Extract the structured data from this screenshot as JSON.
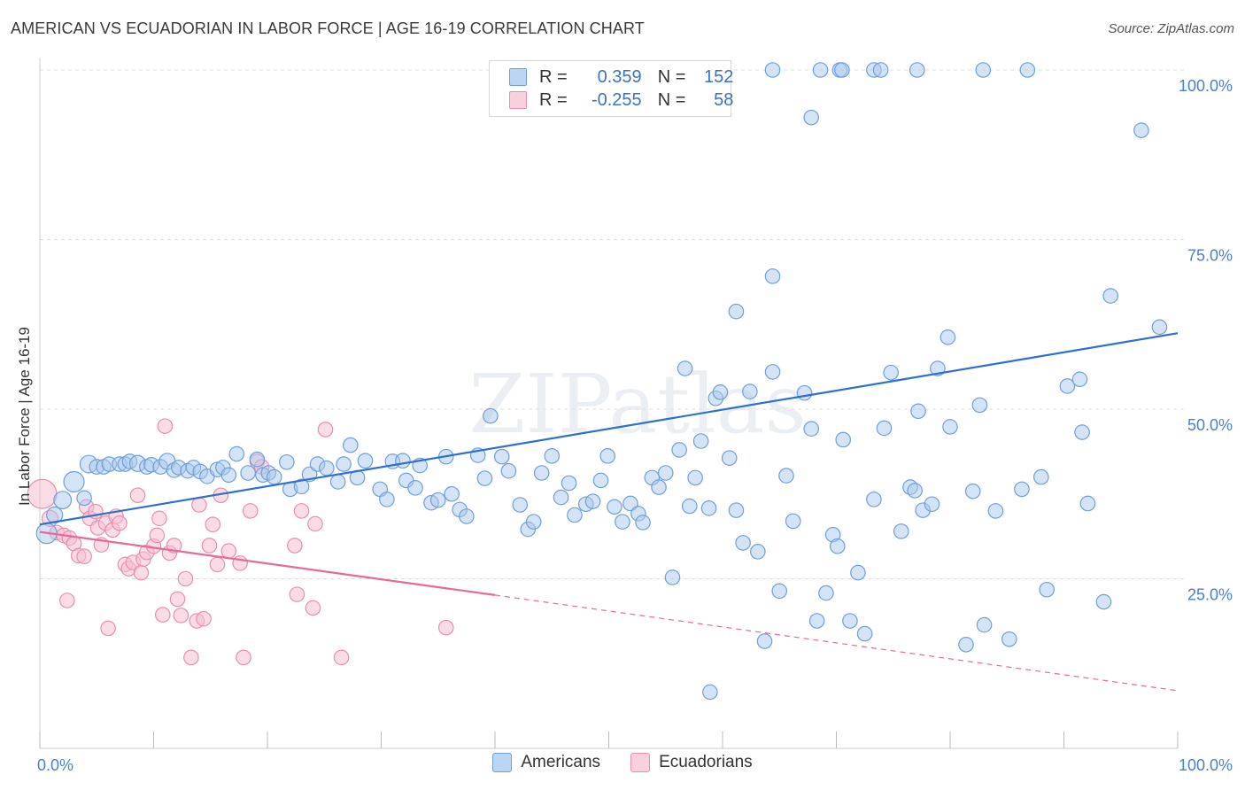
{
  "title": "AMERICAN VS ECUADORIAN IN LABOR FORCE | AGE 16-19 CORRELATION CHART",
  "source": "Source: ZipAtlas.com",
  "watermark": "ZIPatlas",
  "colors": {
    "blue_fill": "#a9c8ee",
    "blue_stroke": "#6f9fdb",
    "blue_line": "#2f6fcf",
    "pink_fill": "#f6c0d2",
    "pink_stroke": "#ea8eae",
    "pink_line": "#e8689a",
    "tick_label": "#4a7fcf",
    "grid": "#dddddd"
  },
  "legend": {
    "rows": [
      {
        "r_label": "R =",
        "r_value": "0.359",
        "n_label": "N =",
        "n_value": "152"
      },
      {
        "r_label": "R =",
        "r_value": "-0.255",
        "n_label": "N =",
        "n_value": "58"
      }
    ]
  },
  "bottom_legend": [
    "Americans",
    "Ecuadorians"
  ],
  "chart_data": {
    "type": "scatter",
    "title": "AMERICAN VS ECUADORIAN IN LABOR FORCE | AGE 16-19 CORRELATION CHART",
    "xlabel": "",
    "ylabel": "In Labor Force | Age 16-19",
    "xlim": [
      0,
      100
    ],
    "ylim": [
      0,
      100
    ],
    "x_tick_labels": [
      "0.0%",
      "100.0%"
    ],
    "y_ticks": [
      25,
      50,
      75,
      100
    ],
    "y_tick_labels": [
      "25.0%",
      "50.0%",
      "75.0%",
      "100.0%"
    ],
    "grid": true,
    "legend_position": "top-center",
    "series": [
      {
        "name": "Americans",
        "r": 0.359,
        "n": 152,
        "trend": {
          "x": [
            0,
            100
          ],
          "y": [
            33.0,
            61.2
          ],
          "style": "solid"
        },
        "points": [
          [
            0.6,
            31.7,
            14
          ],
          [
            1.3,
            34.4,
            11
          ],
          [
            2.0,
            36.6,
            12
          ],
          [
            3.0,
            39.3,
            14
          ],
          [
            3.9,
            36.9,
            10
          ],
          [
            4.3,
            41.9,
            12
          ],
          [
            5.0,
            41.5,
            10
          ],
          [
            5.6,
            41.5,
            10
          ],
          [
            6.1,
            41.9,
            10
          ],
          [
            7.0,
            41.9,
            10
          ],
          [
            7.5,
            41.9,
            10
          ],
          [
            7.9,
            42.3,
            10
          ],
          [
            8.6,
            42.0,
            11
          ],
          [
            9.4,
            41.5,
            10
          ],
          [
            9.8,
            41.8,
            10
          ],
          [
            10.6,
            41.5,
            10
          ],
          [
            11.2,
            42.3,
            11
          ],
          [
            11.8,
            41.0,
            10
          ],
          [
            12.2,
            41.4,
            10
          ],
          [
            13.0,
            40.9,
            10
          ],
          [
            13.5,
            41.4,
            10
          ],
          [
            14.1,
            40.8,
            10
          ],
          [
            14.7,
            40.1,
            10
          ],
          [
            15.6,
            41.1,
            10
          ],
          [
            16.1,
            41.4,
            10
          ],
          [
            16.6,
            40.3,
            10
          ],
          [
            17.3,
            43.4,
            10
          ],
          [
            18.3,
            40.6,
            10
          ],
          [
            19.1,
            42.6,
            10
          ],
          [
            19.6,
            40.3,
            10
          ],
          [
            20.1,
            40.6,
            10
          ],
          [
            20.6,
            40.0,
            10
          ],
          [
            21.7,
            42.2,
            10
          ],
          [
            22.0,
            38.2,
            10
          ],
          [
            23.0,
            38.6,
            10
          ],
          [
            23.7,
            40.4,
            10
          ],
          [
            24.4,
            41.9,
            10
          ],
          [
            25.2,
            41.3,
            10
          ],
          [
            26.2,
            39.3,
            10
          ],
          [
            26.7,
            41.9,
            10
          ],
          [
            27.3,
            44.7,
            10
          ],
          [
            27.9,
            39.9,
            10
          ],
          [
            28.6,
            42.4,
            10
          ],
          [
            29.9,
            38.2,
            10
          ],
          [
            30.5,
            36.7,
            10
          ],
          [
            31.0,
            42.3,
            10
          ],
          [
            31.9,
            42.4,
            10
          ],
          [
            32.2,
            39.5,
            10
          ],
          [
            33.0,
            38.4,
            10
          ],
          [
            33.4,
            41.7,
            10
          ],
          [
            34.4,
            36.2,
            10
          ],
          [
            35.0,
            36.6,
            10
          ],
          [
            35.7,
            43.0,
            10
          ],
          [
            36.2,
            37.5,
            10
          ],
          [
            36.9,
            35.2,
            10
          ],
          [
            37.5,
            34.2,
            10
          ],
          [
            38.5,
            43.2,
            10
          ],
          [
            39.1,
            39.8,
            10
          ],
          [
            39.6,
            49.0,
            10
          ],
          [
            40.6,
            43.0,
            10
          ],
          [
            41.2,
            40.9,
            10
          ],
          [
            42.2,
            35.9,
            10
          ],
          [
            42.9,
            32.3,
            10
          ],
          [
            43.4,
            33.4,
            10
          ],
          [
            44.1,
            40.6,
            10
          ],
          [
            45.0,
            43.1,
            10
          ],
          [
            45.8,
            37.0,
            10
          ],
          [
            46.5,
            39.1,
            10
          ],
          [
            47.0,
            34.4,
            10
          ],
          [
            48.0,
            36.0,
            10
          ],
          [
            48.6,
            36.4,
            10
          ],
          [
            49.3,
            39.5,
            10
          ],
          [
            49.9,
            43.1,
            10
          ],
          [
            50.5,
            35.6,
            10
          ],
          [
            51.2,
            33.4,
            10
          ],
          [
            51.9,
            36.1,
            10
          ],
          [
            52.6,
            34.6,
            10
          ],
          [
            53.0,
            33.3,
            10
          ],
          [
            53.8,
            39.9,
            10
          ],
          [
            54.4,
            38.5,
            10
          ],
          [
            55.0,
            40.6,
            10
          ],
          [
            55.6,
            25.2,
            10
          ],
          [
            56.2,
            44.0,
            10
          ],
          [
            56.7,
            56.0,
            10
          ],
          [
            57.1,
            35.7,
            10
          ],
          [
            57.6,
            39.9,
            10
          ],
          [
            58.1,
            45.3,
            10
          ],
          [
            58.8,
            35.4,
            10
          ],
          [
            59.4,
            51.6,
            10
          ],
          [
            60.6,
            42.8,
            10
          ],
          [
            61.2,
            35.1,
            10
          ],
          [
            61.8,
            30.3,
            10
          ],
          [
            62.4,
            52.6,
            10
          ],
          [
            63.1,
            29.0,
            10
          ],
          [
            63.7,
            15.8,
            10
          ],
          [
            64.4,
            55.5,
            10
          ],
          [
            65.0,
            23.2,
            10
          ],
          [
            65.6,
            40.2,
            10
          ],
          [
            66.2,
            33.5,
            10
          ],
          [
            67.2,
            52.4,
            10
          ],
          [
            67.8,
            47.1,
            10
          ],
          [
            68.3,
            18.8,
            10
          ],
          [
            69.1,
            22.9,
            10
          ],
          [
            69.7,
            31.5,
            10
          ],
          [
            70.1,
            29.8,
            10
          ],
          [
            70.6,
            45.5,
            10
          ],
          [
            71.2,
            18.8,
            10
          ],
          [
            71.9,
            25.9,
            10
          ],
          [
            72.5,
            16.9,
            10
          ],
          [
            73.3,
            36.7,
            10
          ],
          [
            74.2,
            47.2,
            10
          ],
          [
            74.8,
            55.4,
            10
          ],
          [
            75.7,
            32.0,
            10
          ],
          [
            76.5,
            38.5,
            10
          ],
          [
            77.2,
            49.7,
            10
          ],
          [
            77.6,
            35.1,
            10
          ],
          [
            78.4,
            36.0,
            10
          ],
          [
            78.9,
            56.0,
            10
          ],
          [
            79.8,
            60.6,
            10
          ],
          [
            80.0,
            47.4,
            10
          ],
          [
            81.4,
            15.3,
            10
          ],
          [
            82.6,
            50.6,
            10
          ],
          [
            83.0,
            18.2,
            10
          ],
          [
            85.2,
            16.1,
            10
          ],
          [
            86.3,
            38.2,
            10
          ],
          [
            88.5,
            23.4,
            10
          ],
          [
            90.3,
            53.4,
            10
          ],
          [
            91.4,
            54.4,
            10
          ],
          [
            91.6,
            46.6,
            10
          ],
          [
            92.1,
            36.1,
            10
          ],
          [
            93.5,
            21.6,
            10
          ],
          [
            94.1,
            66.7,
            10
          ],
          [
            98.4,
            62.1,
            10
          ],
          [
            58.9,
            8.3,
            10
          ],
          [
            59.6,
            100.0,
            10
          ],
          [
            64.4,
            100.0,
            10
          ],
          [
            67.8,
            93.0,
            10
          ],
          [
            68.6,
            100.0,
            10
          ],
          [
            70.3,
            100.0,
            10
          ],
          [
            70.5,
            100.0,
            10
          ],
          [
            73.3,
            100.0,
            10
          ],
          [
            73.9,
            100.0,
            10
          ],
          [
            77.1,
            100.0,
            10
          ],
          [
            82.9,
            100.0,
            10
          ],
          [
            86.8,
            100.0,
            10
          ],
          [
            96.8,
            91.1,
            10
          ],
          [
            64.4,
            69.6,
            10
          ],
          [
            61.2,
            64.4,
            10
          ],
          [
            59.8,
            52.5,
            10
          ],
          [
            76.9,
            38.0,
            10
          ],
          [
            82.0,
            37.9,
            10
          ],
          [
            84.0,
            35.0,
            10
          ],
          [
            88.0,
            40.0,
            10
          ]
        ]
      },
      {
        "name": "Ecuadorians",
        "r": -0.255,
        "n": 58,
        "trend": {
          "x": [
            0,
            40
          ],
          "y": [
            31.9,
            22.6
          ],
          "style": "solid",
          "dashed_to": [
            100,
            8.5
          ]
        },
        "points": [
          [
            0.2,
            37.5,
            20
          ],
          [
            0.9,
            33.9,
            11
          ],
          [
            1.5,
            31.8,
            10
          ],
          [
            2.1,
            31.4,
            10
          ],
          [
            2.4,
            21.8,
            10
          ],
          [
            2.6,
            31.0,
            10
          ],
          [
            3.0,
            30.2,
            10
          ],
          [
            3.4,
            28.4,
            10
          ],
          [
            3.9,
            28.3,
            10
          ],
          [
            4.1,
            35.6,
            10
          ],
          [
            4.4,
            33.9,
            10
          ],
          [
            4.9,
            34.9,
            10
          ],
          [
            5.1,
            32.5,
            10
          ],
          [
            5.4,
            30.0,
            10
          ],
          [
            5.8,
            33.2,
            10
          ],
          [
            6.0,
            17.7,
            10
          ],
          [
            6.4,
            32.2,
            10
          ],
          [
            6.7,
            34.2,
            10
          ],
          [
            7.0,
            33.2,
            10
          ],
          [
            7.5,
            27.1,
            10
          ],
          [
            7.8,
            26.5,
            10
          ],
          [
            8.2,
            27.4,
            10
          ],
          [
            8.6,
            37.3,
            10
          ],
          [
            8.9,
            25.9,
            10
          ],
          [
            9.1,
            27.9,
            10
          ],
          [
            9.4,
            28.9,
            10
          ],
          [
            10.0,
            29.8,
            10
          ],
          [
            10.3,
            31.4,
            10
          ],
          [
            10.5,
            33.9,
            10
          ],
          [
            10.8,
            19.7,
            10
          ],
          [
            11.0,
            47.5,
            10
          ],
          [
            11.4,
            28.8,
            10
          ],
          [
            11.8,
            29.9,
            10
          ],
          [
            12.1,
            22.0,
            10
          ],
          [
            12.4,
            19.6,
            10
          ],
          [
            12.8,
            25.0,
            10
          ],
          [
            13.3,
            13.4,
            10
          ],
          [
            13.8,
            18.8,
            10
          ],
          [
            14.0,
            35.9,
            10
          ],
          [
            14.4,
            19.1,
            10
          ],
          [
            14.9,
            29.9,
            10
          ],
          [
            15.2,
            33.0,
            10
          ],
          [
            15.6,
            27.1,
            10
          ],
          [
            15.9,
            37.3,
            10
          ],
          [
            16.6,
            29.1,
            10
          ],
          [
            17.6,
            27.3,
            10
          ],
          [
            17.9,
            13.4,
            10
          ],
          [
            19.1,
            42.3,
            10
          ],
          [
            19.5,
            41.5,
            10
          ],
          [
            22.4,
            29.9,
            10
          ],
          [
            22.6,
            22.7,
            10
          ],
          [
            23.0,
            35.0,
            10
          ],
          [
            24.0,
            20.7,
            10
          ],
          [
            24.2,
            33.1,
            10
          ],
          [
            25.1,
            47.0,
            10
          ],
          [
            26.5,
            13.4,
            10
          ],
          [
            35.7,
            17.8,
            10
          ],
          [
            18.5,
            35.0,
            10
          ]
        ]
      }
    ]
  }
}
